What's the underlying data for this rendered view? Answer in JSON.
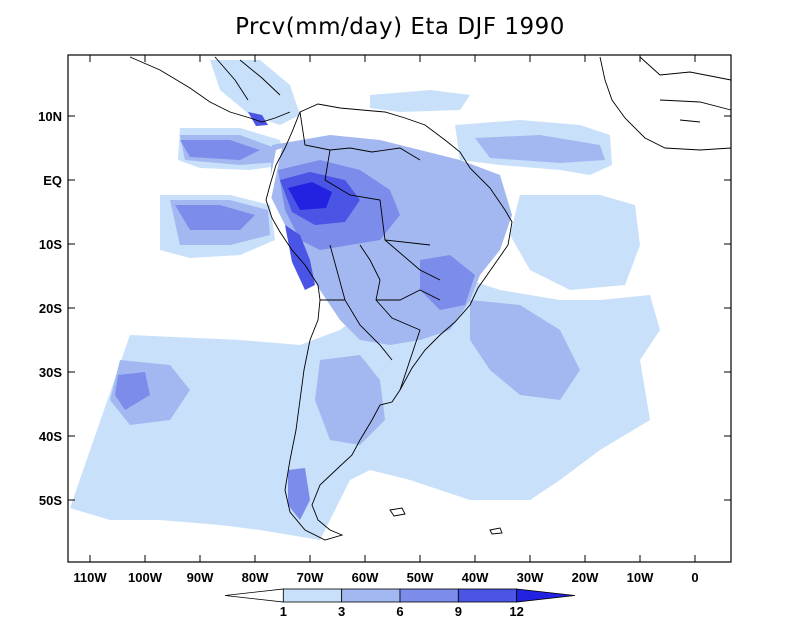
{
  "title": "Prcv(mm/day) Eta DJF 1990",
  "axes": {
    "lat_ticks": [
      "10N",
      "EQ",
      "10S",
      "20S",
      "30S",
      "40S",
      "50S"
    ],
    "lat_values": [
      10,
      0,
      -10,
      -20,
      -30,
      -40,
      -50
    ],
    "lon_ticks": [
      "110W",
      "100W",
      "90W",
      "80W",
      "70W",
      "60W",
      "50W",
      "40W",
      "30W",
      "20W",
      "10W",
      "0"
    ],
    "lon_values": [
      -110,
      -100,
      -90,
      -80,
      -70,
      -60,
      -50,
      -40,
      -30,
      -20,
      -10,
      0
    ]
  },
  "colorbar": {
    "labels": [
      "1",
      "3",
      "6",
      "9",
      "12"
    ],
    "colors": [
      "#ffffff",
      "#c8e0fa",
      "#a3b8f0",
      "#7b8ceb",
      "#4a55e6",
      "#2222e0"
    ]
  }
}
